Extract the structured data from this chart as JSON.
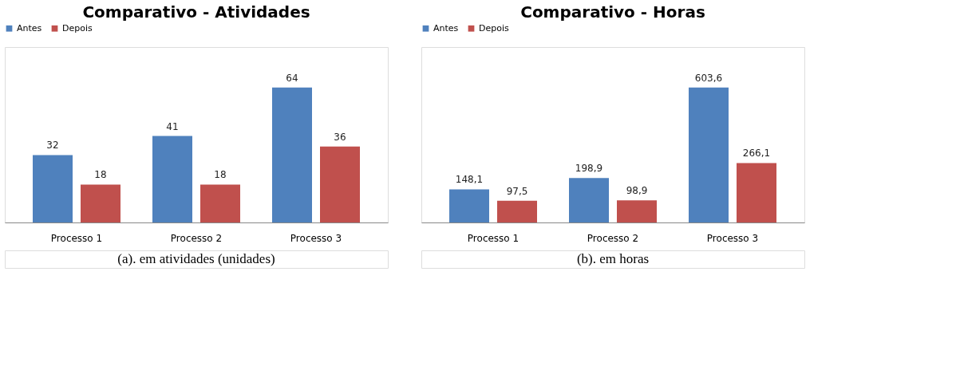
{
  "chart_data": [
    {
      "type": "bar",
      "title": "Comparativo - Atividades",
      "categories": [
        "Processo 1",
        "Processo 2",
        "Processo 3"
      ],
      "legend": "top",
      "data_labels": true,
      "series": [
        {
          "name": "Antes",
          "color": "#4f81bd",
          "values": [
            32,
            41,
            64
          ]
        },
        {
          "name": "Depois",
          "color": "#c0504d",
          "values": [
            18,
            18,
            36
          ]
        }
      ],
      "annotations": [
        "(a). em atividades (unidades)"
      ]
    },
    {
      "type": "bar",
      "title": "Comparativo - Horas",
      "categories": [
        "Processo 1",
        "Processo 2",
        "Processo 3"
      ],
      "legend": "top",
      "series": [
        {
          "name": "Antes",
          "color": "#4f81bd",
          "values": [
            148.1,
            198.9,
            603.6
          ],
          "value_labels": [
            "148,1",
            "198,9",
            "603,6"
          ]
        },
        {
          "name": "Depois",
          "color": "#c0504d",
          "values": [
            97.5,
            98.9,
            266.1
          ],
          "value_labels": [
            "97,5",
            "98,9",
            "266,1"
          ]
        }
      ],
      "annotations": [
        "(b). em horas"
      ]
    }
  ]
}
